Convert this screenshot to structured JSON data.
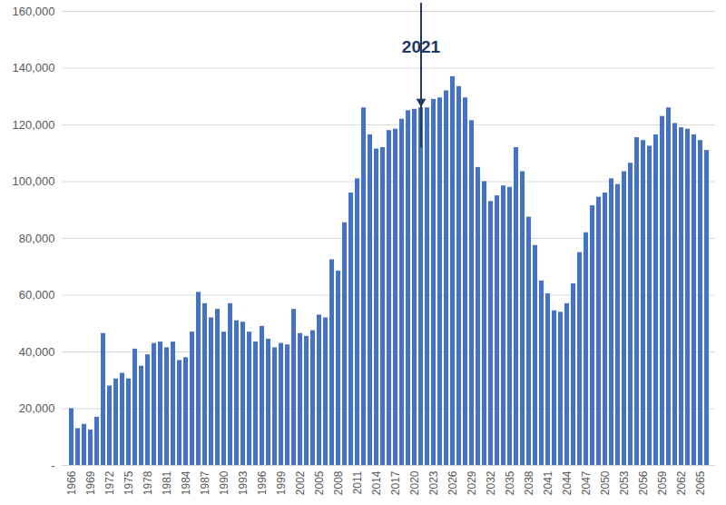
{
  "chart_data": {
    "type": "bar",
    "x": [
      1966,
      1967,
      1968,
      1969,
      1970,
      1971,
      1972,
      1973,
      1974,
      1975,
      1976,
      1977,
      1978,
      1979,
      1980,
      1981,
      1982,
      1983,
      1984,
      1985,
      1986,
      1987,
      1988,
      1989,
      1990,
      1991,
      1992,
      1993,
      1994,
      1995,
      1996,
      1997,
      1998,
      1999,
      2000,
      2001,
      2002,
      2003,
      2004,
      2005,
      2006,
      2007,
      2008,
      2009,
      2010,
      2011,
      2012,
      2013,
      2014,
      2015,
      2016,
      2017,
      2018,
      2019,
      2020,
      2021,
      2022,
      2023,
      2024,
      2025,
      2026,
      2027,
      2028,
      2029,
      2030,
      2031,
      2032,
      2033,
      2034,
      2035,
      2036,
      2037,
      2038,
      2039,
      2040,
      2041,
      2042,
      2043,
      2044,
      2045,
      2046,
      2047,
      2048,
      2049,
      2050,
      2051,
      2052,
      2053,
      2054,
      2055,
      2056,
      2057,
      2058,
      2059,
      2060,
      2061,
      2062,
      2063,
      2064,
      2065,
      2066
    ],
    "values": [
      20000,
      13000,
      14500,
      12500,
      17000,
      46500,
      28000,
      30500,
      32500,
      30500,
      41000,
      35000,
      39000,
      43000,
      43500,
      41500,
      43500,
      37000,
      38000,
      47000,
      61000,
      57000,
      52000,
      55000,
      47000,
      57000,
      51000,
      50500,
      47000,
      43500,
      49000,
      44500,
      41500,
      43000,
      42500,
      55000,
      46500,
      45500,
      47500,
      53000,
      52000,
      72500,
      68500,
      85500,
      96000,
      101000,
      126000,
      116500,
      111500,
      112000,
      118000,
      118500,
      122000,
      125000,
      125500,
      126000,
      126000,
      129000,
      129500,
      132000,
      137000,
      133500,
      129500,
      121500,
      105000,
      100000,
      93000,
      95000,
      98500,
      98000,
      112000,
      103500,
      87500,
      77500,
      65000,
      60500,
      54500,
      54000,
      57000,
      64000,
      75000,
      82000,
      91500,
      94500,
      96000,
      101000,
      99000,
      103500,
      106500,
      115500,
      114500,
      112500,
      116500,
      123000,
      126000,
      120500,
      119000,
      118500,
      116500,
      114500,
      111000
    ],
    "xticks": [
      1966,
      1969,
      1972,
      1975,
      1978,
      1981,
      1984,
      1987,
      1990,
      1993,
      1996,
      1999,
      2002,
      2005,
      2008,
      2011,
      2014,
      2017,
      2020,
      2023,
      2026,
      2029,
      2032,
      2035,
      2038,
      2041,
      2044,
      2047,
      2050,
      2053,
      2056,
      2059,
      2062,
      2065
    ],
    "ylim": [
      0,
      160000
    ],
    "yticks": [
      {
        "value": 0,
        "label": "-"
      },
      {
        "value": 20000,
        "label": "20,000"
      },
      {
        "value": 40000,
        "label": "40,000"
      },
      {
        "value": 60000,
        "label": "60,000"
      },
      {
        "value": 80000,
        "label": "80,000"
      },
      {
        "value": 100000,
        "label": "100,000"
      },
      {
        "value": 120000,
        "label": "120,000"
      },
      {
        "value": 140000,
        "label": "140,000"
      },
      {
        "value": 160000,
        "label": "160,000"
      }
    ],
    "color": "#4472c4",
    "grid": true,
    "annotations": [
      {
        "text": "2021",
        "x": 2021
      }
    ]
  }
}
